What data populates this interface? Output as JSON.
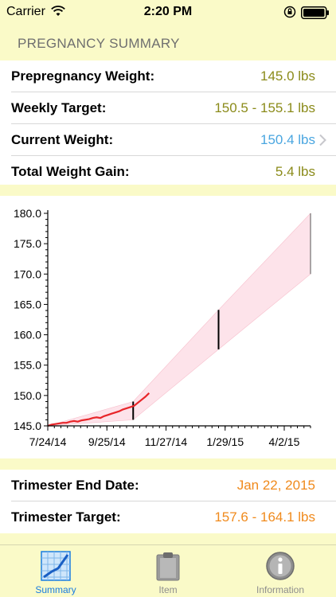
{
  "status": {
    "carrier": "Carrier",
    "time": "2:20 PM"
  },
  "header": {
    "title": "PREGNANCY SUMMARY"
  },
  "summary": [
    {
      "label": "Prepregnancy Weight:",
      "value": "145.0 lbs",
      "color": "#8b8b1a"
    },
    {
      "label": "Weekly Target:",
      "value": "150.5 - 155.1 lbs",
      "color": "#8b8b1a"
    },
    {
      "label": "Current Weight:",
      "value": "150.4 lbs",
      "color": "#4aa6e0"
    },
    {
      "label": "Total Weight Gain:",
      "value": "5.4 lbs",
      "color": "#8b8b1a"
    }
  ],
  "trimester": [
    {
      "label": "Trimester End Date:",
      "value": "Jan 22, 2015",
      "color": "#f08a1c"
    },
    {
      "label": "Trimester Target:",
      "value": "157.6 - 164.1 lbs",
      "color": "#f08a1c"
    }
  ],
  "chart_data": {
    "type": "line",
    "title": "",
    "xlabel": "",
    "ylabel": "",
    "x_ticks": [
      "7/24/14",
      "9/25/14",
      "11/27/14",
      "1/29/15",
      "4/2/15"
    ],
    "y_ticks": [
      "145.0",
      "150.0",
      "155.0",
      "160.0",
      "165.0",
      "170.0",
      "175.0",
      "180.0"
    ],
    "ylim": [
      145.0,
      180.0
    ],
    "xlim": [
      "2014-07-24",
      "2015-04-30"
    ],
    "target_band": {
      "x": [
        "2014-07-24",
        "2014-10-23",
        "2015-01-22",
        "2015-04-30"
      ],
      "low": [
        145.0,
        146.0,
        157.6,
        170.0
      ],
      "high": [
        145.0,
        149.0,
        164.1,
        180.0
      ]
    },
    "trimester_markers": [
      {
        "x": "2014-10-23",
        "low": 146.0,
        "high": 149.0
      },
      {
        "x": "2015-01-22",
        "low": 157.6,
        "high": 164.1
      },
      {
        "x": "2015-04-30",
        "low": 170.0,
        "high": 180.0
      }
    ],
    "series": [
      {
        "color": "#e8262a",
        "points": [
          [
            "2014-07-24",
            145.0
          ],
          [
            "2014-07-28",
            145.2
          ],
          [
            "2014-08-01",
            145.3
          ],
          [
            "2014-08-05",
            145.4
          ],
          [
            "2014-08-09",
            145.5
          ],
          [
            "2014-08-13",
            145.5
          ],
          [
            "2014-08-17",
            145.7
          ],
          [
            "2014-08-21",
            145.8
          ],
          [
            "2014-08-25",
            145.7
          ],
          [
            "2014-08-29",
            145.9
          ],
          [
            "2014-09-02",
            146.0
          ],
          [
            "2014-09-06",
            146.1
          ],
          [
            "2014-09-10",
            146.3
          ],
          [
            "2014-09-14",
            146.4
          ],
          [
            "2014-09-18",
            146.3
          ],
          [
            "2014-09-22",
            146.6
          ],
          [
            "2014-09-26",
            146.8
          ],
          [
            "2014-09-30",
            147.0
          ],
          [
            "2014-10-04",
            147.2
          ],
          [
            "2014-10-08",
            147.4
          ],
          [
            "2014-10-12",
            147.7
          ],
          [
            "2014-10-16",
            147.9
          ],
          [
            "2014-10-20",
            148.1
          ],
          [
            "2014-10-24",
            148.3
          ],
          [
            "2014-10-28",
            148.8
          ],
          [
            "2014-11-01",
            149.3
          ],
          [
            "2014-11-05",
            149.8
          ],
          [
            "2014-11-09",
            150.4
          ]
        ]
      }
    ],
    "grid": false,
    "legend": "none"
  },
  "tabs": [
    {
      "label": "Summary",
      "icon": "summary-chart-icon",
      "active": true
    },
    {
      "label": "Item",
      "icon": "clipboard-icon",
      "active": false
    },
    {
      "label": "Information",
      "icon": "info-icon",
      "active": false
    }
  ]
}
